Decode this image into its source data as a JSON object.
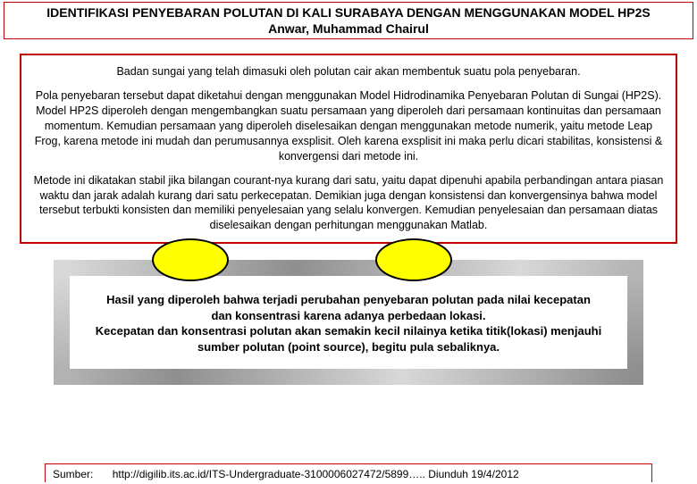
{
  "header": {
    "title": "IDENTIFIKASI PENYEBARAN POLUTAN DI KALI SURABAYA DENGAN MENGGUNAKAN MODEL HP2S",
    "author": "Anwar, Muhammad Chairul"
  },
  "body": {
    "p1": "Badan sungai yang telah dimasuki oleh polutan cair akan membentuk suatu pola penyebaran.",
    "p2": "Pola penyebaran tersebut dapat diketahui dengan menggunakan Model Hidrodinamika Penyebaran Polutan di Sungai (HP2S). Model HP2S diperoleh dengan mengembangkan suatu persamaan yang diperoleh dari persamaan kontinuitas dan persamaan momentum. Kemudian persamaan yang diperoleh diselesaikan dengan menggunakan metode numerik, yaitu metode Leap Frog, karena metode ini mudah dan perumusannya exsplisit. Oleh karena exsplisit ini maka perlu dicari stabilitas, konsistensi & konvergensi dari metode ini.",
    "p3": "Metode ini dikatakan stabil jika bilangan courant-nya kurang dari satu, yaitu dapat dipenuhi apabila perbandingan antara piasan waktu dan jarak adalah kurang dari satu perkecepatan. Demikian juga dengan konsistensi dan konvergensinya bahwa model tersebut terbukti konsisten dan memiliki penyelesaian yang selalu konvergen. Kemudian penyelesaian dan persamaan diatas diselesaikan dengan perhitungan menggunakan Matlab."
  },
  "result": {
    "line1": "Hasil yang diperoleh bahwa terjadi perubahan penyebaran polutan pada nilai kecepatan dan konsentrasi karena adanya perbedaan lokasi.",
    "line2": "Kecepatan dan konsentrasi polutan akan semakin kecil nilainya ketika titik(lokasi) menjauhi sumber polutan (point source), begitu pula sebaliknya."
  },
  "source": {
    "label": "Sumber:",
    "text": "http://digilib.its.ac.id/ITS-Undergraduate-3100006027472/5899….. Diunduh  19/4/2012"
  },
  "colors": {
    "border_red": "#c00000",
    "ellipse_fill": "#ffff00",
    "bevel_light": "#d0d0d0",
    "bevel_dark": "#8a8a8a"
  }
}
